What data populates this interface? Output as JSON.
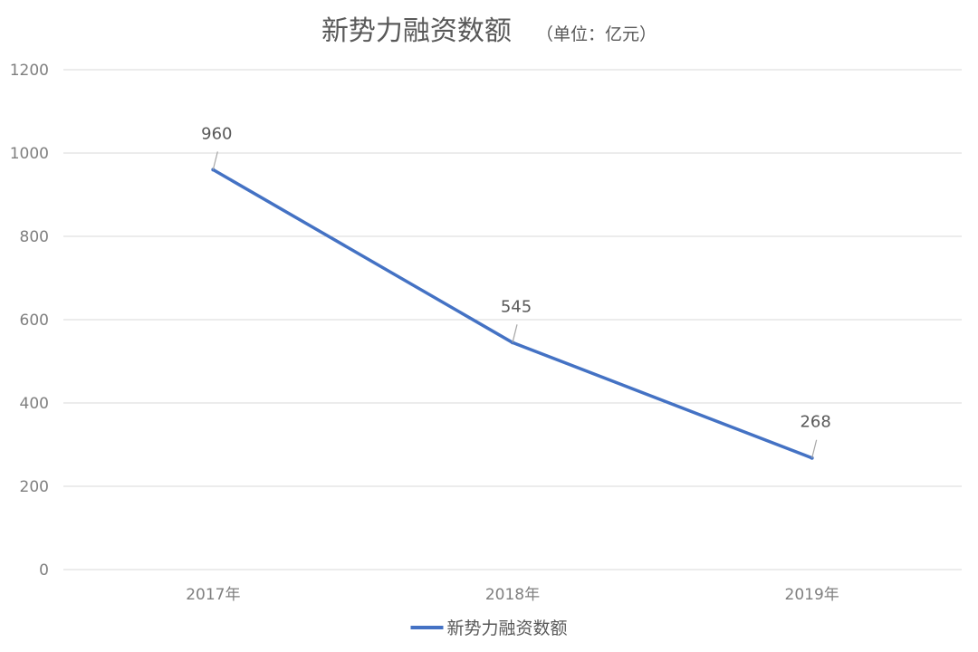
{
  "chart_data": {
    "type": "line",
    "title": "新势力融资数额",
    "subtitle": "（单位：亿元）",
    "categories": [
      "2017年",
      "2018年",
      "2019年"
    ],
    "series": [
      {
        "name": "新势力融资数额",
        "values": [
          960,
          545,
          268
        ],
        "color": "#4472c4"
      }
    ],
    "data_labels": [
      "960",
      "545",
      "268"
    ],
    "ylim": [
      0,
      1200
    ],
    "yticks": [
      0,
      200,
      400,
      600,
      800,
      1000,
      1200
    ],
    "ytick_labels": [
      "0",
      "200",
      "400",
      "600",
      "800",
      "1000",
      "1200"
    ],
    "grid": true,
    "grid_color": "#d9d9d9",
    "legend_position": "bottom"
  }
}
